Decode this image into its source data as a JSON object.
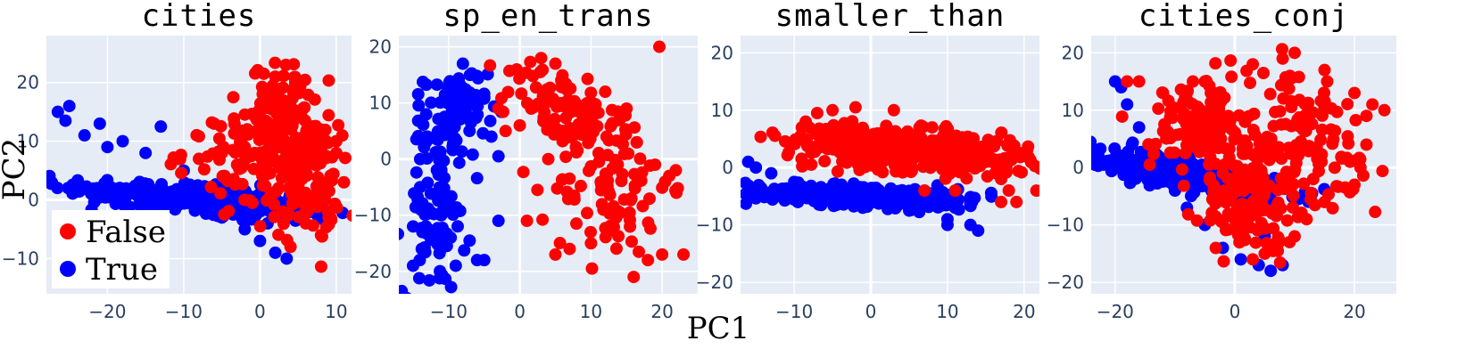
{
  "colors": {
    "False": "#ff0000",
    "True": "#0000ff",
    "plot_bg": "#e5ecf6",
    "grid": "#ffffff"
  },
  "figure": {
    "shared_xlabel": "PC1",
    "shared_ylabel": "PC2"
  },
  "legend": {
    "placement": "bottom-left of first panel",
    "entries": [
      "False",
      "True"
    ]
  },
  "chart_data": [
    {
      "type": "scatter",
      "title": "cities",
      "xlim": [
        -28,
        12
      ],
      "ylim": [
        -16,
        28
      ],
      "xticks": [
        -20,
        -10,
        0,
        10
      ],
      "yticks": [
        -10,
        0,
        10,
        20
      ],
      "xticklabels": [
        "−20",
        "−10",
        "0",
        "10"
      ],
      "yticklabels": [
        "−10",
        "0",
        "10",
        "20"
      ],
      "grid": true,
      "clusters": {
        "False": {
          "n": 300,
          "blobs": [
            [
              6,
              3,
              2.2,
              5,
              0
            ],
            [
              0,
              6,
              5,
              4,
              -0.3
            ],
            [
              3,
              15,
              2,
              4,
              0
            ]
          ]
        },
        "True": {
          "n": 320,
          "blobs": [
            [
              -8,
              0,
              9,
              1.8,
              -0.6
            ]
          ]
        }
      },
      "series": [
        {
          "name": "False",
          "points": [
            [
              0.5,
              21.5
            ],
            [
              2,
              21
            ],
            [
              -3.5,
              17.5
            ],
            [
              3,
              17
            ],
            [
              -6,
              13
            ],
            [
              5,
              15
            ],
            [
              7,
              12
            ],
            [
              -8,
              7
            ],
            [
              -5,
              8
            ],
            [
              -3,
              6
            ],
            [
              0,
              5
            ],
            [
              -1,
              -0.5
            ],
            [
              3,
              -2
            ],
            [
              6,
              -4
            ],
            [
              8,
              -6
            ],
            [
              10,
              10
            ],
            [
              11,
              3
            ],
            [
              9,
              -3
            ],
            [
              4,
              -8
            ],
            [
              -2,
              9
            ],
            [
              8,
              12
            ],
            [
              4,
              12
            ],
            [
              10,
              8
            ]
          ]
        },
        {
          "name": "True",
          "points": [
            [
              -25,
              16
            ],
            [
              -26.5,
              15
            ],
            [
              -25.5,
              13.5
            ],
            [
              -23,
              11
            ],
            [
              -21,
              13
            ],
            [
              -18,
              10
            ],
            [
              -13,
              12.5
            ],
            [
              -15,
              8
            ],
            [
              -20,
              9
            ],
            [
              -10,
              5
            ],
            [
              -6,
              1
            ],
            [
              -3,
              -2
            ],
            [
              0,
              -7
            ],
            [
              2,
              -9
            ],
            [
              3.5,
              -10
            ],
            [
              -5,
              -3
            ],
            [
              -8,
              0
            ],
            [
              -2,
              -5
            ],
            [
              1,
              -4
            ]
          ]
        }
      ]
    },
    {
      "type": "scatter",
      "title": "sp_en_trans",
      "xlim": [
        -17,
        25
      ],
      "ylim": [
        -24,
        22
      ],
      "xticks": [
        -10,
        0,
        10,
        20
      ],
      "yticks": [
        -20,
        -10,
        0,
        10,
        20
      ],
      "xticklabels": [
        "−10",
        "0",
        "10",
        "20"
      ],
      "yticklabels": [
        "−20",
        "−10",
        "0",
        "10",
        "20"
      ],
      "grid": true,
      "clusters": {
        "False": {
          "n": 190,
          "blobs": [
            [
              6,
              9,
              4,
              4,
              -0.4
            ],
            [
              13,
              -4,
              4,
              7,
              0
            ]
          ]
        },
        "True": {
          "n": 170,
          "blobs": [
            [
              -9,
              8,
              2.2,
              4,
              0.1
            ],
            [
              -12,
              -10,
              2.2,
              7,
              0
            ]
          ]
        }
      },
      "series": [
        {
          "name": "False",
          "points": [
            [
              3,
              18
            ],
            [
              5,
              17
            ],
            [
              -3,
              9
            ],
            [
              0,
              6
            ],
            [
              -2,
              5
            ],
            [
              1,
              -11
            ],
            [
              5,
              -17
            ],
            [
              7,
              -16
            ],
            [
              10,
              -15
            ],
            [
              16,
              -21
            ],
            [
              18,
              -18
            ],
            [
              20,
              -17
            ],
            [
              23,
              -17
            ],
            [
              22,
              -6
            ],
            [
              21,
              -3
            ],
            [
              19,
              -1
            ],
            [
              15,
              9
            ],
            [
              12,
              12
            ],
            [
              4,
              0
            ]
          ]
        },
        {
          "name": "True",
          "points": [
            [
              -8,
              17
            ],
            [
              -7,
              15
            ],
            [
              -5,
              11
            ],
            [
              -4,
              4
            ],
            [
              -3,
              0.5
            ],
            [
              -3,
              -11
            ],
            [
              -5,
              -18
            ],
            [
              -6,
              -18
            ],
            [
              -9,
              -19
            ],
            [
              -11,
              -21
            ],
            [
              -15,
              -19
            ],
            [
              -15,
              -12
            ],
            [
              -14,
              -5
            ],
            [
              -14,
              0
            ],
            [
              -13,
              4
            ]
          ]
        }
      ]
    },
    {
      "type": "scatter",
      "title": "smaller_than",
      "xlim": [
        -17,
        22
      ],
      "ylim": [
        -22,
        23
      ],
      "xticks": [
        -10,
        0,
        10,
        20
      ],
      "yticks": [
        -20,
        -10,
        0,
        10,
        20
      ],
      "xticklabels": [
        "−10",
        "0",
        "10",
        "20"
      ],
      "yticklabels": [
        "−20",
        "−10",
        "0",
        "10",
        "20"
      ],
      "grid": true,
      "clusters": {
        "False": {
          "n": 420,
          "blobs": [
            [
              5,
              3,
              8,
              2,
              -0.45
            ]
          ]
        },
        "True": {
          "n": 320,
          "blobs": [
            [
              0,
              -5,
              8,
              1,
              -0.42
            ]
          ]
        }
      },
      "series": [
        {
          "name": "False",
          "points": [
            [
              -9,
              7
            ],
            [
              -8.5,
              8
            ],
            [
              -7,
              9.5
            ],
            [
              -5,
              10
            ],
            [
              -2,
              10.5
            ],
            [
              3,
              10
            ],
            [
              8,
              7
            ],
            [
              12,
              4
            ],
            [
              15,
              1
            ],
            [
              17,
              -2
            ],
            [
              18,
              -4
            ],
            [
              19,
              -6
            ],
            [
              17,
              -6
            ],
            [
              11,
              -4
            ],
            [
              7,
              -4
            ],
            [
              -5,
              5
            ]
          ]
        },
        {
          "name": "True",
          "points": [
            [
              -16,
              1
            ],
            [
              -15,
              0
            ],
            [
              -13,
              -1
            ],
            [
              -10,
              -2.5
            ],
            [
              -5,
              -4
            ],
            [
              0,
              -6
            ],
            [
              5,
              -7.5
            ],
            [
              10,
              -9
            ],
            [
              13,
              -10
            ],
            [
              14,
              -11
            ],
            [
              10,
              -10
            ],
            [
              11,
              -7
            ]
          ]
        }
      ]
    },
    {
      "type": "scatter",
      "title": "cities_conj",
      "xlim": [
        -24,
        27
      ],
      "ylim": [
        -22,
        23
      ],
      "xticks": [
        -20,
        0,
        20
      ],
      "yticks": [
        -20,
        -10,
        0,
        10,
        20
      ],
      "xticklabels": [
        "−20",
        "0",
        "20"
      ],
      "yticklabels": [
        "−20",
        "−10",
        "0",
        "10",
        "20"
      ],
      "grid": true,
      "clusters": {
        "False": {
          "n": 380,
          "blobs": [
            [
              11,
              4,
              7,
              7,
              0
            ],
            [
              3,
              -5,
              4,
              5,
              0.2
            ],
            [
              -6,
              7,
              4,
              4,
              0
            ]
          ]
        },
        "True": {
          "n": 300,
          "blobs": [
            [
              -8,
              -1,
              8,
              2,
              -0.75
            ]
          ]
        }
      },
      "series": [
        {
          "name": "False",
          "points": [
            [
              -18,
              15
            ],
            [
              -16,
              15
            ],
            [
              -7,
              15
            ],
            [
              -5,
              15
            ],
            [
              -8,
              9
            ],
            [
              -12,
              13
            ],
            [
              -4,
              13
            ],
            [
              -2,
              7
            ],
            [
              3,
              18
            ],
            [
              8,
              19
            ],
            [
              10,
              20
            ],
            [
              15,
              17
            ],
            [
              20,
              13
            ],
            [
              23,
              11
            ],
            [
              25,
              10
            ],
            [
              22,
              9
            ],
            [
              22,
              4
            ],
            [
              21,
              0
            ],
            [
              20,
              -3
            ],
            [
              15,
              -6
            ],
            [
              12,
              -9
            ],
            [
              10,
              -12
            ],
            [
              7,
              -13
            ],
            [
              3,
              -16
            ],
            [
              5,
              -15
            ],
            [
              0,
              -9
            ],
            [
              -2,
              -1
            ]
          ]
        },
        {
          "name": "True",
          "points": [
            [
              -20,
              15
            ],
            [
              -19,
              14
            ],
            [
              -18,
              11
            ],
            [
              -16,
              7
            ],
            [
              -14,
              3
            ],
            [
              -12,
              0
            ],
            [
              -10,
              -4
            ],
            [
              -8,
              -7
            ],
            [
              -5,
              -10
            ],
            [
              -2,
              -14
            ],
            [
              1,
              -16
            ],
            [
              4,
              -17
            ],
            [
              6,
              -18
            ],
            [
              8,
              -17
            ],
            [
              5,
              -12
            ],
            [
              0,
              -5
            ],
            [
              -4,
              1
            ],
            [
              -7,
              3
            ]
          ]
        }
      ]
    }
  ]
}
